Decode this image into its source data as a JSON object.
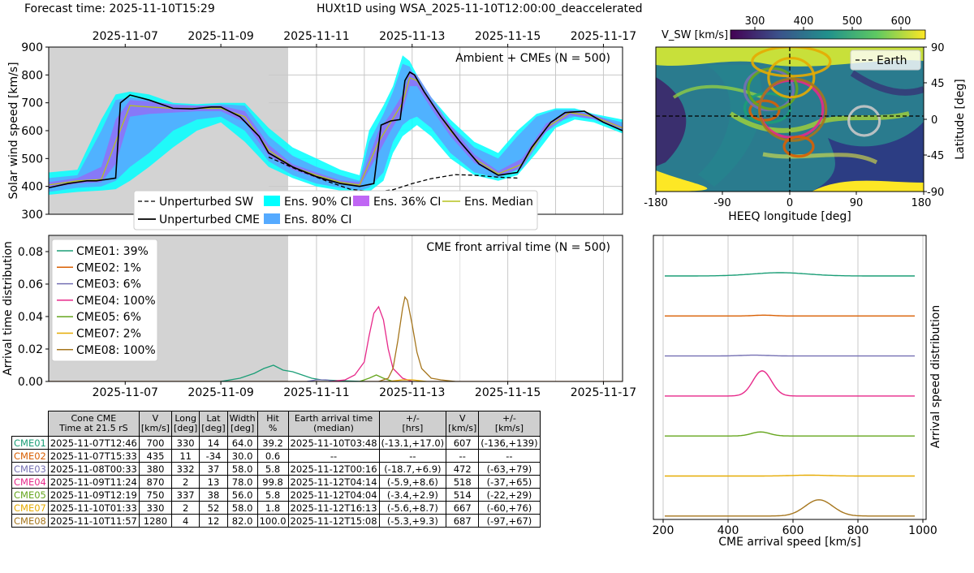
{
  "header": {
    "forecast_time": "Forecast time: 2025-11-10T15:29",
    "title": "HUXt1D using WSA_2025-11-10T12:00:00_deaccelerated"
  },
  "colors": {
    "CME01": "#1b9e77",
    "CME02": "#d95f02",
    "CME03": "#7570b3",
    "CME04": "#e7298a",
    "CME05": "#66a61e",
    "CME07": "#e6ab02",
    "CME08": "#a6761d",
    "ci90": "#00ffff",
    "ci80": "#55aaff",
    "ci36": "#b54bf2",
    "median": "#b5c21e",
    "shade": "#d3d3d3"
  },
  "chart_data": [
    {
      "id": "speed",
      "type": "line",
      "annotation": "Ambient + CMEs (N = 500)",
      "ylabel": "Solar wind speed [km/s]",
      "ylim": [
        300,
        900
      ],
      "yticks": [
        300,
        400,
        500,
        600,
        700,
        800,
        900
      ],
      "xlim_days": [
        -4.6,
        7.4
      ],
      "xtick_labels": [
        "2025-11-07",
        "2025-11-09",
        "2025-11-11",
        "2025-11-13",
        "2025-11-15",
        "2025-11-17"
      ],
      "xtick_days": [
        -3,
        -1,
        1,
        3,
        5,
        7
      ],
      "forecast_day": 0,
      "legend": [
        "Unperturbed SW",
        "Ens. 90% CI",
        "Ens. 36% CI",
        "Ens. Median",
        "Unperturbed CME",
        "Ens. 80% CI"
      ],
      "unperturbed_sw": {
        "x": [
          0,
          0.6,
          1.2,
          1.7,
          2.2,
          2.6,
          3.0,
          3.4,
          3.9,
          4.3,
          4.8,
          5.2
        ],
        "y": [
          505,
          460,
          420,
          390,
          380,
          388,
          410,
          428,
          442,
          440,
          433,
          430
        ]
      },
      "unperturbed_cme": {
        "x": [
          -4.6,
          -4.2,
          -4.0,
          -3.8,
          -3.6,
          -3.2,
          -3.1,
          -2.9,
          -2.5,
          -2.0,
          -1.6,
          -1.2,
          -1.0,
          -0.6,
          -0.2,
          0,
          0.5,
          1.0,
          1.5,
          1.9,
          2.2,
          2.35,
          2.55,
          2.75,
          2.85,
          2.95,
          3.05,
          3.25,
          3.6,
          4.0,
          4.4,
          4.8,
          5.2,
          5.5,
          5.9,
          6.2,
          6.6,
          7.0,
          7.4
        ],
        "y": [
          395,
          410,
          415,
          420,
          420,
          430,
          700,
          728,
          710,
          680,
          678,
          685,
          685,
          650,
          580,
          520,
          470,
          435,
          410,
          400,
          410,
          620,
          635,
          640,
          780,
          810,
          800,
          740,
          650,
          560,
          480,
          440,
          450,
          540,
          630,
          665,
          670,
          630,
          600
        ]
      },
      "median": {
        "x": [
          -4.6,
          -4.0,
          -3.5,
          -3.2,
          -2.9,
          -2.5,
          -2.0,
          -1.5,
          -1.0,
          -0.5,
          0,
          0.5,
          1.0,
          1.5,
          1.9,
          2.3,
          2.55,
          2.8,
          2.95,
          3.1,
          3.4,
          3.8,
          4.3,
          4.8,
          5.3,
          5.8,
          6.3,
          6.8,
          7.4
        ],
        "y": [
          405,
          420,
          425,
          560,
          690,
          685,
          680,
          680,
          680,
          650,
          530,
          470,
          440,
          415,
          405,
          560,
          630,
          700,
          790,
          780,
          700,
          600,
          500,
          445,
          480,
          610,
          665,
          650,
          610
        ]
      },
      "ci90": {
        "x": [
          -4.6,
          -4.0,
          -3.5,
          -3.2,
          -2.9,
          -2.5,
          -2.0,
          -1.5,
          -1.0,
          -0.5,
          0,
          0.5,
          1.0,
          1.5,
          1.9,
          2.1,
          2.4,
          2.6,
          2.8,
          2.95,
          3.1,
          3.4,
          3.8,
          4.3,
          4.8,
          5.2,
          5.6,
          6.0,
          6.4,
          6.8,
          7.4
        ],
        "lo": [
          370,
          380,
          385,
          390,
          420,
          470,
          540,
          600,
          630,
          560,
          470,
          430,
          400,
          385,
          375,
          380,
          420,
          520,
          580,
          600,
          620,
          580,
          500,
          440,
          420,
          440,
          520,
          610,
          640,
          630,
          590
        ],
        "hi": [
          450,
          460,
          640,
          730,
          740,
          730,
          700,
          695,
          700,
          700,
          610,
          540,
          500,
          460,
          440,
          600,
          690,
          760,
          870,
          850,
          800,
          720,
          640,
          560,
          520,
          600,
          660,
          680,
          680,
          660,
          640
        ]
      },
      "ci80": {
        "x": [
          -4.6,
          -4.0,
          -3.5,
          -3.2,
          -2.9,
          -2.5,
          -2.0,
          -1.5,
          -1.0,
          -0.5,
          0,
          0.5,
          1.0,
          1.5,
          1.9,
          2.1,
          2.4,
          2.6,
          2.8,
          2.95,
          3.1,
          3.4,
          3.8,
          4.3,
          4.8,
          5.2,
          5.6,
          6.0,
          6.4,
          6.8,
          7.4
        ],
        "lo": [
          380,
          395,
          400,
          420,
          470,
          520,
          600,
          640,
          650,
          600,
          490,
          440,
          410,
          395,
          385,
          395,
          450,
          560,
          620,
          640,
          650,
          610,
          520,
          450,
          430,
          460,
          560,
          630,
          650,
          640,
          600
        ],
        "hi": [
          430,
          440,
          600,
          710,
          720,
          710,
          690,
          690,
          695,
          690,
          580,
          510,
          470,
          440,
          420,
          560,
          660,
          740,
          840,
          830,
          780,
          700,
          620,
          540,
          500,
          580,
          650,
          675,
          675,
          655,
          630
        ]
      },
      "ci36": {
        "x": [
          -4.6,
          -4.0,
          -3.5,
          -3.2,
          -2.9,
          -2.5,
          -2.0,
          -1.5,
          -1.0,
          -0.5,
          0,
          0.5,
          1.0,
          1.5,
          1.9,
          2.3,
          2.55,
          2.8,
          2.95,
          3.1,
          3.4,
          3.8,
          4.3,
          4.8,
          5.3,
          5.8,
          6.3,
          6.8,
          7.4
        ],
        "lo": [
          395,
          410,
          415,
          480,
          650,
          660,
          665,
          670,
          670,
          630,
          510,
          460,
          430,
          408,
          398,
          520,
          600,
          670,
          760,
          760,
          680,
          580,
          485,
          438,
          465,
          595,
          655,
          642,
          605
        ],
        "hi": [
          415,
          430,
          470,
          640,
          710,
          705,
          695,
          690,
          690,
          670,
          550,
          480,
          450,
          422,
          415,
          600,
          660,
          730,
          815,
          800,
          720,
          620,
          515,
          455,
          500,
          625,
          672,
          658,
          615
        ]
      }
    },
    {
      "id": "arrival",
      "type": "line",
      "annotation": "CME front arrival time (N = 500)",
      "ylabel": "Arrival time distribution",
      "ylim": [
        0,
        0.09
      ],
      "yticks": [
        0,
        0.02,
        0.04,
        0.06,
        0.08
      ],
      "ytick_labels": [
        "0.00",
        "0.02",
        "0.04",
        "0.06",
        "0.08"
      ],
      "xlim_days": [
        -4.6,
        7.4
      ],
      "xtick_labels": [
        "2025-11-07",
        "2025-11-09",
        "2025-11-11",
        "2025-11-13",
        "2025-11-15",
        "2025-11-17"
      ],
      "xtick_days": [
        -3,
        -1,
        1,
        3,
        5,
        7
      ],
      "legend": [
        "CME01: 39%",
        "CME02:  1%",
        "CME03:  6%",
        "CME04: 100%",
        "CME05:  6%",
        "CME07:  2%",
        "CME08: 100%"
      ],
      "series": [
        {
          "name": "CME01",
          "x": [
            -1.0,
            -0.6,
            -0.3,
            -0.1,
            0.1,
            0.3,
            0.5,
            0.7,
            0.9,
            1.1,
            1.5,
            2.0
          ],
          "y": [
            0,
            0.002,
            0.005,
            0.008,
            0.01,
            0.007,
            0.006,
            0.004,
            0.002,
            0.001,
            0.0005,
            0
          ]
        },
        {
          "name": "CME03",
          "x": [
            0.8,
            1.0,
            1.2,
            1.4
          ],
          "y": [
            0,
            0.001,
            0.001,
            0
          ]
        },
        {
          "name": "CME04",
          "x": [
            1.3,
            1.6,
            1.8,
            2.0,
            2.1,
            2.2,
            2.3,
            2.4,
            2.5,
            2.6,
            2.8,
            3.0
          ],
          "y": [
            0,
            0.001,
            0.004,
            0.012,
            0.028,
            0.042,
            0.046,
            0.038,
            0.02,
            0.008,
            0.002,
            0
          ]
        },
        {
          "name": "CME05",
          "x": [
            1.9,
            2.1,
            2.25,
            2.4,
            2.6
          ],
          "y": [
            0,
            0.002,
            0.004,
            0.002,
            0
          ]
        },
        {
          "name": "CME07",
          "x": [
            2.5,
            2.8,
            3.0,
            3.3
          ],
          "y": [
            0,
            0.001,
            0.001,
            0
          ]
        },
        {
          "name": "CME08",
          "x": [
            2.3,
            2.5,
            2.6,
            2.7,
            2.8,
            2.85,
            2.9,
            3.0,
            3.1,
            3.2,
            3.4,
            3.6,
            3.9
          ],
          "y": [
            0,
            0.002,
            0.008,
            0.025,
            0.045,
            0.052,
            0.05,
            0.035,
            0.018,
            0.008,
            0.002,
            0.001,
            0
          ]
        }
      ]
    },
    {
      "id": "map",
      "type": "heatmap",
      "colorbar_label": "V_SW [km/s]",
      "colorbar_ticks": [
        "300",
        "400",
        "500",
        "600"
      ],
      "colorbar_range": [
        250,
        650
      ],
      "xlabel": "HEEQ longitude [deg]",
      "ylabel": "Latitude [deg]",
      "xticks": [
        "-180",
        "-90",
        "0",
        "90",
        "180"
      ],
      "yticks": [
        "90",
        "45",
        "0",
        "-45",
        "-90"
      ],
      "legend": [
        "Earth"
      ],
      "cme_ellipses": [
        {
          "name": "CME01",
          "lon": -30,
          "lat": 14,
          "rx": 28,
          "ry": 18
        },
        {
          "name": "CME02",
          "lon": -34,
          "lat": 11,
          "rx": 18,
          "ry": 12
        },
        {
          "name": "CME03",
          "lon": -28,
          "lat": 37,
          "rx": 30,
          "ry": 25
        },
        {
          "name": "CME04",
          "lon": 2,
          "lat": 13,
          "rx": 39,
          "ry": 35
        },
        {
          "name": "CME05",
          "lon": -23,
          "lat": 38,
          "rx": 30,
          "ry": 25
        },
        {
          "name": "CME07",
          "lon": 2,
          "lat": 52,
          "rx": 28,
          "ry": 24
        },
        {
          "name": "CME08",
          "lon": 4,
          "lat": 12,
          "rx": 41,
          "ry": 38
        },
        {
          "name": "CME02b",
          "lon": 12,
          "lat": -34,
          "rx": 18,
          "ry": 12
        },
        {
          "name": "CME07b",
          "lon": 2,
          "lat": 72,
          "rx": 48,
          "ry": 18
        },
        {
          "name": "grey",
          "lon": 100,
          "lat": -2,
          "rx": 19,
          "ry": 18
        }
      ]
    },
    {
      "id": "speed_dist",
      "type": "line",
      "xlabel": "CME arrival speed [km/s]",
      "ylabel": "Arrival speed distribution",
      "xlim": [
        170,
        1010
      ],
      "xticks": [
        200,
        400,
        600,
        800,
        1000
      ],
      "series": [
        {
          "name": "CME01",
          "bump_center": 560,
          "bump_height": 0.4,
          "bump_width": 120
        },
        {
          "name": "CME02",
          "bump_center": 510,
          "bump_height": 0.1,
          "bump_width": 40
        },
        {
          "name": "CME03",
          "bump_center": 480,
          "bump_height": 0.1,
          "bump_width": 60
        },
        {
          "name": "CME04",
          "bump_center": 505,
          "bump_height": 3.1,
          "bump_width": 40
        },
        {
          "name": "CME05",
          "bump_center": 500,
          "bump_height": 0.5,
          "bump_width": 40
        },
        {
          "name": "CME07",
          "bump_center": 650,
          "bump_height": 0.1,
          "bump_width": 80
        },
        {
          "name": "CME08",
          "bump_center": 680,
          "bump_height": 2.0,
          "bump_width": 60
        }
      ]
    }
  ],
  "table": {
    "headers": [
      "Cone CME\nTime at 21.5 rS",
      "V\n[km/s]",
      "Long\n[deg]",
      "Lat\n[deg]",
      "Width\n[deg]",
      "Hit\n%",
      "Earth arrival time\n(median)",
      "+/-\n[hrs]",
      "V\n[km/s]",
      "+/-\n[km/s]"
    ],
    "rows": [
      {
        "label": "CME01",
        "cells": [
          "2025-11-07T12:46",
          "700",
          "330",
          "14",
          "64.0",
          "39.2",
          "2025-11-10T03:48",
          "(-13.1,+17.0)",
          "607",
          "(-136,+139)"
        ]
      },
      {
        "label": "CME02",
        "cells": [
          "2025-11-07T15:33",
          "435",
          "11",
          "-34",
          "30.0",
          "0.6",
          "--",
          "--",
          "--",
          "--"
        ]
      },
      {
        "label": "CME03",
        "cells": [
          "2025-11-08T00:33",
          "380",
          "332",
          "37",
          "58.0",
          "5.8",
          "2025-11-12T00:16",
          "(-18.7,+6.9)",
          "472",
          "(-63,+79)"
        ]
      },
      {
        "label": "CME04",
        "cells": [
          "2025-11-09T11:24",
          "870",
          "2",
          "13",
          "78.0",
          "99.8",
          "2025-11-12T04:14",
          "(-5.9,+8.6)",
          "518",
          "(-37,+65)"
        ]
      },
      {
        "label": "CME05",
        "cells": [
          "2025-11-09T12:19",
          "750",
          "337",
          "38",
          "56.0",
          "5.8",
          "2025-11-12T04:04",
          "(-3.4,+2.9)",
          "514",
          "(-22,+29)"
        ]
      },
      {
        "label": "CME07",
        "cells": [
          "2025-11-10T01:33",
          "330",
          "2",
          "52",
          "58.0",
          "1.8",
          "2025-11-12T16:13",
          "(-5.6,+8.7)",
          "667",
          "(-60,+76)"
        ]
      },
      {
        "label": "CME08",
        "cells": [
          "2025-11-10T11:57",
          "1280",
          "4",
          "12",
          "82.0",
          "100.0",
          "2025-11-12T15:08",
          "(-5.3,+9.3)",
          "687",
          "(-97,+67)"
        ]
      }
    ]
  }
}
